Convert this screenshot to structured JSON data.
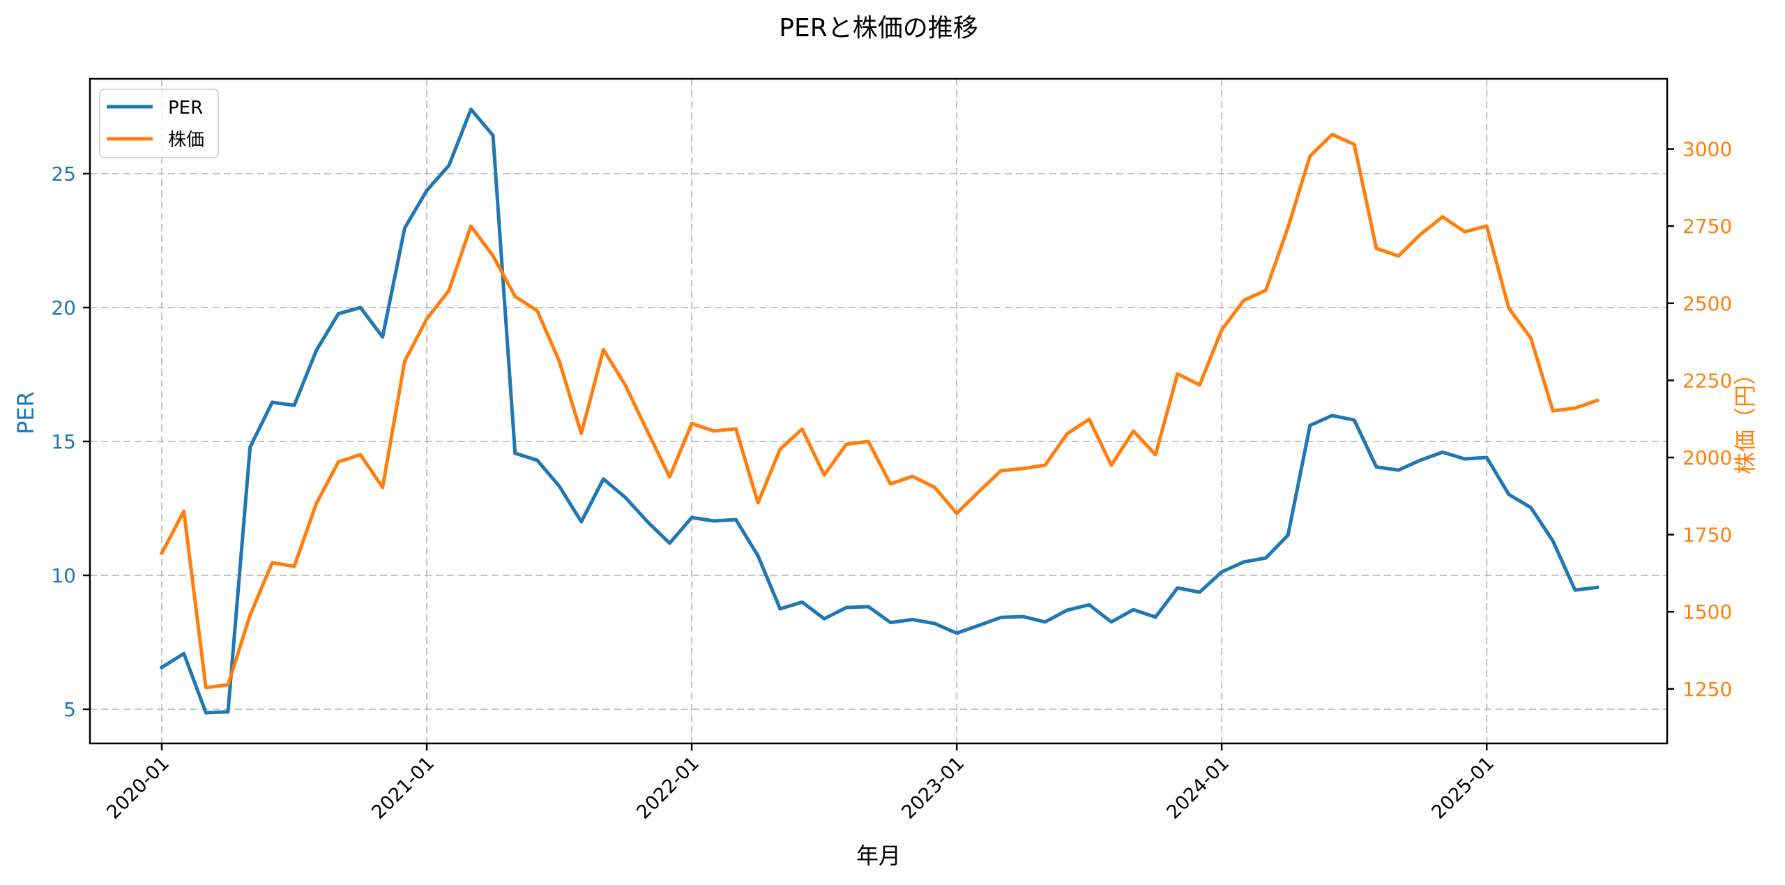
{
  "chart_data": {
    "type": "line",
    "title": "PERと株価の推移",
    "xlabel": "年月",
    "ylabel_left": "PER",
    "ylabel_right": "株価（円）",
    "x": [
      "2020-01",
      "2020-02",
      "2020-03",
      "2020-04",
      "2020-05",
      "2020-06",
      "2020-07",
      "2020-08",
      "2020-09",
      "2020-10",
      "2020-11",
      "2020-12",
      "2021-01",
      "2021-02",
      "2021-03",
      "2021-04",
      "2021-05",
      "2021-06",
      "2021-07",
      "2021-08",
      "2021-09",
      "2021-10",
      "2021-11",
      "2021-12",
      "2022-01",
      "2022-02",
      "2022-03",
      "2022-04",
      "2022-05",
      "2022-06",
      "2022-07",
      "2022-08",
      "2022-09",
      "2022-10",
      "2022-11",
      "2022-12",
      "2023-01",
      "2023-02",
      "2023-03",
      "2023-04",
      "2023-05",
      "2023-06",
      "2023-07",
      "2023-08",
      "2023-09",
      "2023-10",
      "2023-11",
      "2023-12",
      "2024-01",
      "2024-02",
      "2024-03",
      "2024-04",
      "2024-05",
      "2024-06",
      "2024-07",
      "2024-08",
      "2024-09",
      "2024-10",
      "2024-11",
      "2024-12",
      "2025-01",
      "2025-02",
      "2025-03",
      "2025-04",
      "2025-05",
      "2025-06"
    ],
    "x_ticks": [
      "2020-01",
      "2021-01",
      "2022-01",
      "2023-01",
      "2024-01",
      "2025-01"
    ],
    "series": [
      {
        "name": "PER",
        "axis": "left",
        "color": "#1f77b4",
        "values": [
          6.56,
          7.08,
          4.87,
          4.9,
          14.79,
          16.46,
          16.35,
          18.4,
          19.77,
          20.0,
          18.9,
          22.97,
          24.37,
          25.3,
          27.4,
          26.43,
          14.56,
          14.3,
          13.33,
          12.0,
          13.6,
          12.9,
          12.0,
          11.2,
          12.16,
          12.03,
          12.08,
          10.73,
          8.75,
          9.0,
          8.38,
          8.8,
          8.83,
          8.24,
          8.35,
          8.2,
          7.84,
          8.13,
          8.43,
          8.46,
          8.26,
          8.7,
          8.9,
          8.26,
          8.72,
          8.44,
          9.53,
          9.37,
          10.13,
          10.5,
          10.65,
          11.5,
          15.6,
          15.97,
          15.8,
          14.05,
          13.93,
          14.3,
          14.6,
          14.35,
          14.4,
          13.02,
          12.53,
          11.28,
          9.45,
          9.55
        ]
      },
      {
        "name": "株価",
        "axis": "right",
        "color": "#ff7f0e",
        "values": [
          1690,
          1826,
          1254,
          1263,
          1489,
          1659,
          1647,
          1851,
          1986,
          2009,
          1903,
          2312,
          2449,
          2541,
          2750,
          2654,
          2522,
          2476,
          2312,
          2078,
          2350,
          2233,
          2084,
          1937,
          2110,
          2086,
          2093,
          1853,
          2027,
          2092,
          1943,
          2043,
          2052,
          1914,
          1939,
          1903,
          1819,
          1889,
          1957,
          1964,
          1975,
          2077,
          2124,
          1975,
          2086,
          2009,
          2271,
          2235,
          2414,
          2509,
          2542,
          2746,
          2977,
          3047,
          3015,
          2678,
          2653,
          2723,
          2780,
          2732,
          2750,
          2484,
          2387,
          2151,
          2160,
          2185
        ]
      }
    ],
    "ylim_left": [
      3.78,
      28.39
    ],
    "ylim_right": [
      1066,
      3227
    ],
    "left_ticks": [
      5,
      10,
      15,
      20,
      25
    ],
    "right_ticks": [
      1250,
      1500,
      1750,
      2000,
      2250,
      2500,
      2750,
      3000
    ],
    "grid": true,
    "legend_position": "upper left"
  },
  "legend": {
    "items": [
      {
        "label": "PER",
        "color": "#1f77b4"
      },
      {
        "label": "株価",
        "color": "#ff7f0e"
      }
    ]
  },
  "colors": {
    "per": "#1f77b4",
    "price": "#ff7f0e",
    "grid": "#b0b0b0",
    "axis": "#000000"
  }
}
